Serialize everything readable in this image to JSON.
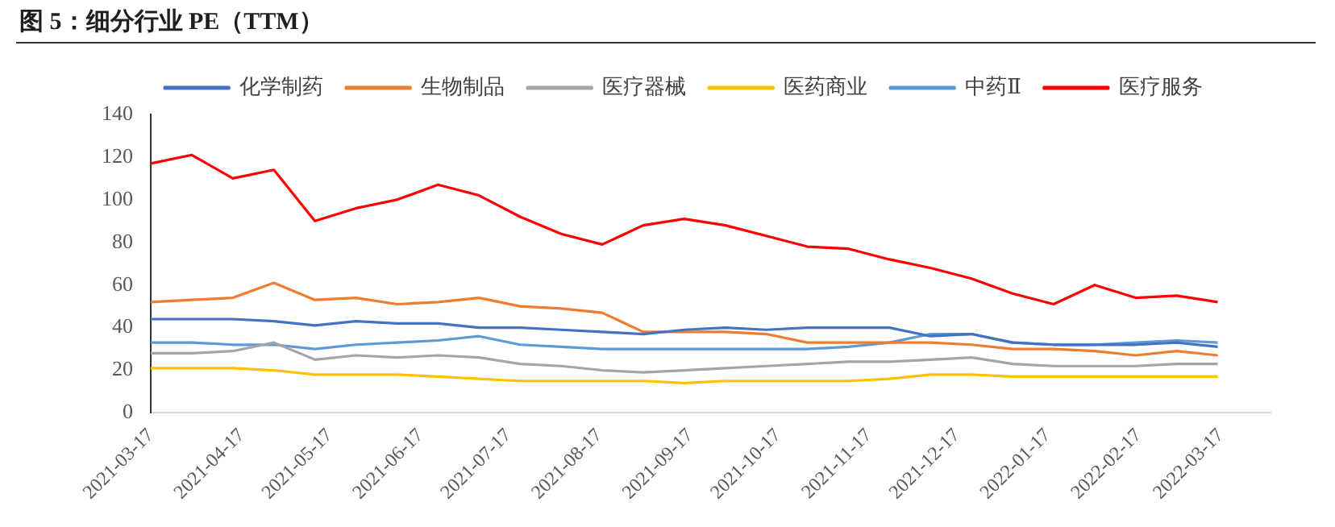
{
  "chart_data": {
    "type": "line",
    "title": "图 5：细分行业 PE（TTM）",
    "x": [
      "2021-03-17",
      "2021-03-31",
      "2021-04-14",
      "2021-04-28",
      "2021-05-12",
      "2021-05-26",
      "2021-06-09",
      "2021-06-23",
      "2021-07-07",
      "2021-07-21",
      "2021-08-04",
      "2021-08-18",
      "2021-09-01",
      "2021-09-15",
      "2021-09-29",
      "2021-10-13",
      "2021-10-27",
      "2021-11-10",
      "2021-11-24",
      "2021-12-08",
      "2021-12-22",
      "2022-01-05",
      "2022-01-19",
      "2022-02-02",
      "2022-02-16",
      "2022-03-02",
      "2022-03-16"
    ],
    "series": [
      {
        "name": "化学制药",
        "color": "#4472c4",
        "values": [
          44,
          44,
          44,
          43,
          41,
          43,
          42,
          42,
          40,
          40,
          39,
          38,
          37,
          39,
          40,
          39,
          40,
          40,
          40,
          36,
          37,
          33,
          32,
          32,
          32,
          33,
          31
        ]
      },
      {
        "name": "生物制品",
        "color": "#ed7d31",
        "values": [
          52,
          53,
          54,
          61,
          53,
          54,
          51,
          52,
          54,
          50,
          49,
          47,
          38,
          38,
          38,
          37,
          33,
          33,
          33,
          33,
          32,
          30,
          30,
          29,
          27,
          29,
          27
        ]
      },
      {
        "name": "医疗器械",
        "color": "#a5a5a5",
        "values": [
          28,
          28,
          29,
          33,
          25,
          27,
          26,
          27,
          26,
          23,
          22,
          20,
          19,
          20,
          21,
          22,
          23,
          24,
          24,
          25,
          26,
          23,
          22,
          22,
          22,
          23,
          23
        ]
      },
      {
        "name": "医药商业",
        "color": "#ffc000",
        "values": [
          21,
          21,
          21,
          20,
          18,
          18,
          18,
          17,
          16,
          15,
          15,
          15,
          15,
          14,
          15,
          15,
          15,
          15,
          16,
          18,
          18,
          17,
          17,
          17,
          17,
          17,
          17
        ]
      },
      {
        "name": "中药Ⅱ",
        "color": "#5b9bd5",
        "values": [
          33,
          33,
          32,
          32,
          30,
          32,
          33,
          34,
          36,
          32,
          31,
          30,
          30,
          30,
          30,
          30,
          30,
          31,
          33,
          37,
          37,
          33,
          32,
          32,
          33,
          34,
          33
        ]
      },
      {
        "name": "医疗服务",
        "color": "#ff0000",
        "values": [
          117,
          121,
          110,
          114,
          90,
          96,
          100,
          107,
          102,
          92,
          84,
          79,
          88,
          91,
          88,
          83,
          78,
          77,
          72,
          68,
          63,
          56,
          51,
          60,
          54,
          55,
          52
        ]
      }
    ],
    "xlim": [
      "2021-03-17",
      "2022-04-03"
    ],
    "xticks": [
      "2021-03-17",
      "2021-04-17",
      "2021-05-17",
      "2021-06-17",
      "2021-07-17",
      "2021-08-17",
      "2021-09-17",
      "2021-10-17",
      "2021-11-17",
      "2021-12-17",
      "2022-01-17",
      "2022-02-17",
      "2022-03-17"
    ],
    "ylim": [
      0,
      140
    ],
    "yticks": [
      0,
      20,
      40,
      60,
      80,
      100,
      120,
      140
    ],
    "grid": false,
    "legend": "top",
    "marker": "none",
    "line_style": "solid"
  }
}
